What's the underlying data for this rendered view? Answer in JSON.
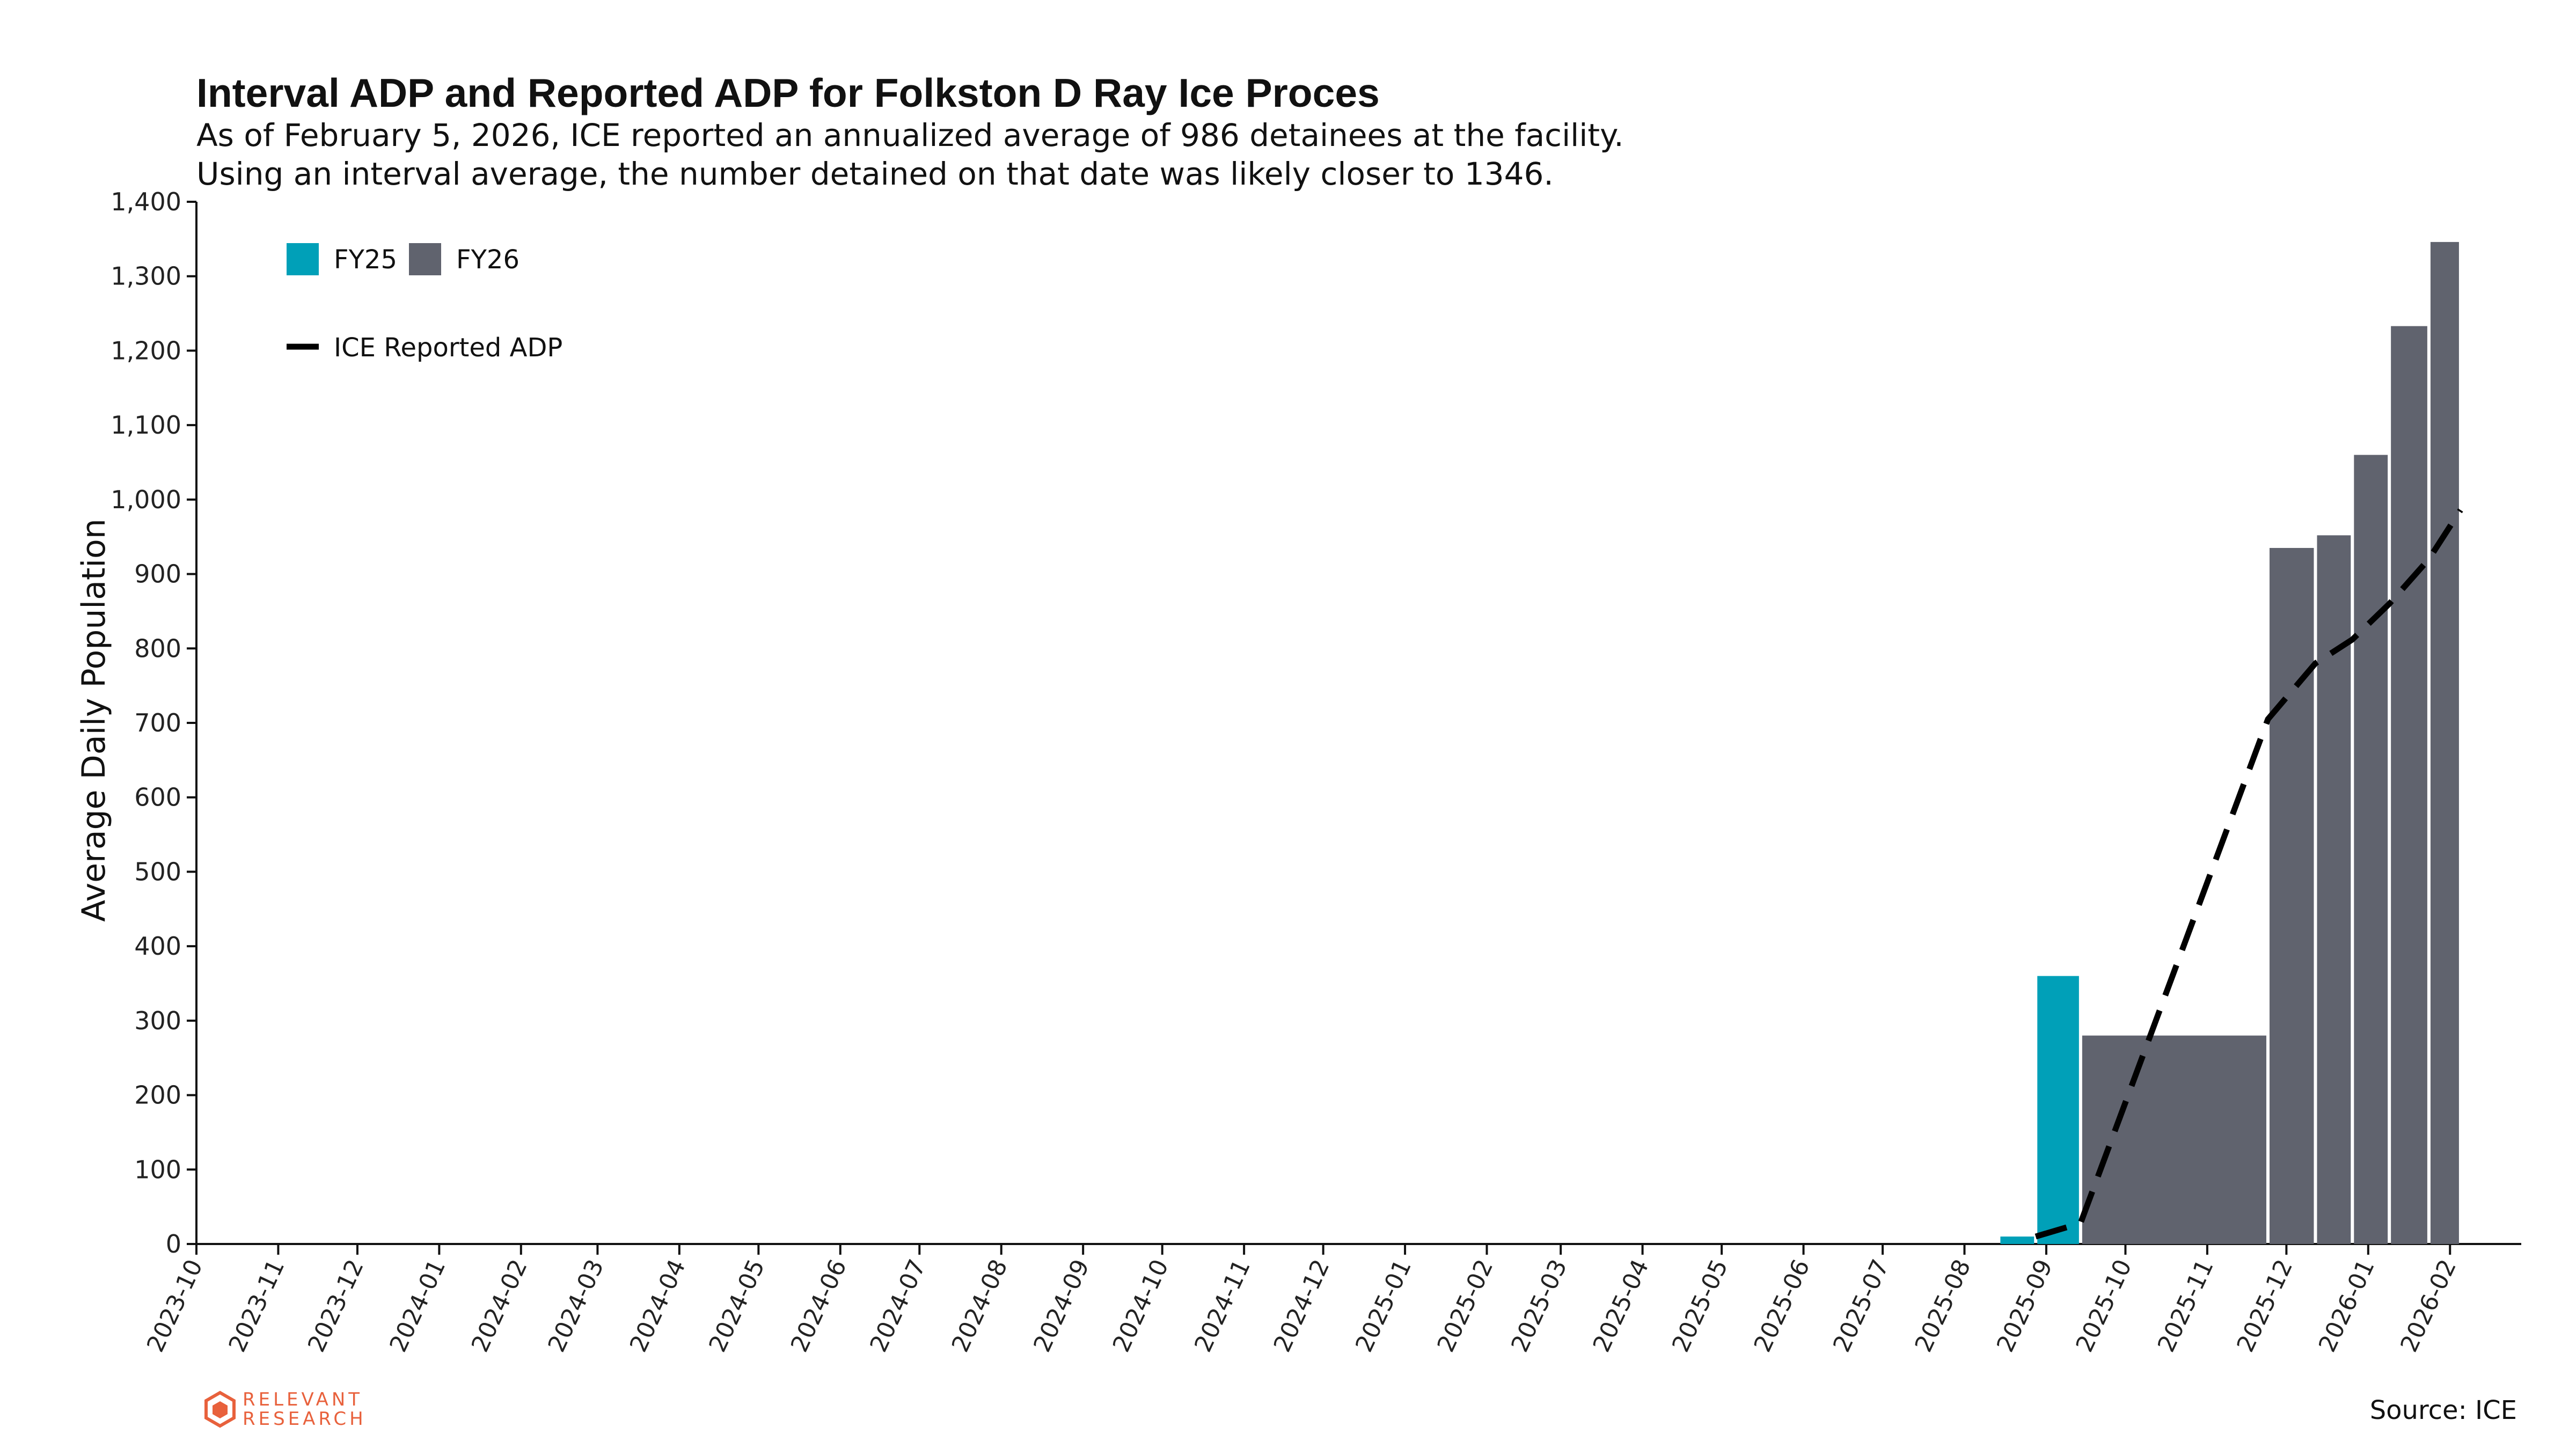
{
  "header": {
    "title": "Interval ADP and Reported ADP for Folkston D Ray Ice Proces",
    "subtitle_line1": "As of February 5, 2026, ICE reported an annualized average of 986 detainees at the facility.",
    "subtitle_line2": "Using an interval average, the number detained on that date was likely closer to 1346."
  },
  "footer": {
    "source": "Source: ICE",
    "logo_line1": "RELEVANT",
    "logo_line2": "RESEARCH"
  },
  "colors": {
    "fy25": "#00a0b8",
    "fy26": "#60636e",
    "line": "#000000",
    "logo": "#e8613c"
  },
  "chart_data": {
    "type": "bar",
    "ylabel": "Average Daily Population",
    "xlabel": "",
    "ylim": [
      0,
      1400
    ],
    "yticks": [
      0,
      100,
      200,
      300,
      400,
      500,
      600,
      700,
      800,
      900,
      1000,
      1100,
      1200,
      1300,
      1400
    ],
    "xlim": [
      "2023-10-01",
      "2026-02-28"
    ],
    "xticks": [
      "2023-10",
      "2023-11",
      "2023-12",
      "2024-01",
      "2024-02",
      "2024-03",
      "2024-04",
      "2024-05",
      "2024-06",
      "2024-07",
      "2024-08",
      "2024-09",
      "2024-10",
      "2024-11",
      "2024-12",
      "2025-01",
      "2025-02",
      "2025-03",
      "2025-04",
      "2025-05",
      "2025-06",
      "2025-07",
      "2025-08",
      "2025-09",
      "2025-10",
      "2025-11",
      "2025-12",
      "2026-01",
      "2026-02"
    ],
    "legend": {
      "placement": "top-left",
      "entries": [
        "FY25",
        "FY26",
        "ICE Reported ADP"
      ]
    },
    "series": [
      {
        "name": "FY25",
        "bars": [
          {
            "start": "2025-08-14",
            "end": "2025-08-28",
            "value": 10
          },
          {
            "start": "2025-08-28",
            "end": "2025-09-14",
            "value": 360
          }
        ]
      },
      {
        "name": "FY26",
        "bars": [
          {
            "start": "2025-09-14",
            "end": "2025-11-24",
            "value": 280
          },
          {
            "start": "2025-11-24",
            "end": "2025-12-12",
            "value": 935
          },
          {
            "start": "2025-12-12",
            "end": "2025-12-26",
            "value": 952
          },
          {
            "start": "2025-12-26",
            "end": "2026-01-09",
            "value": 1060
          },
          {
            "start": "2026-01-09",
            "end": "2026-01-24",
            "value": 1233
          },
          {
            "start": "2026-01-24",
            "end": "2026-02-05",
            "value": 1346
          }
        ]
      },
      {
        "name": "ICE Reported ADP",
        "points": [
          {
            "x": "2025-08-28",
            "y": 10
          },
          {
            "x": "2025-09-14",
            "y": 28
          },
          {
            "x": "2025-11-24",
            "y": 705
          },
          {
            "x": "2025-12-12",
            "y": 780
          },
          {
            "x": "2025-12-26",
            "y": 812
          },
          {
            "x": "2026-01-09",
            "y": 860
          },
          {
            "x": "2026-01-24",
            "y": 920
          },
          {
            "x": "2026-02-05",
            "y": 986
          }
        ]
      }
    ]
  }
}
